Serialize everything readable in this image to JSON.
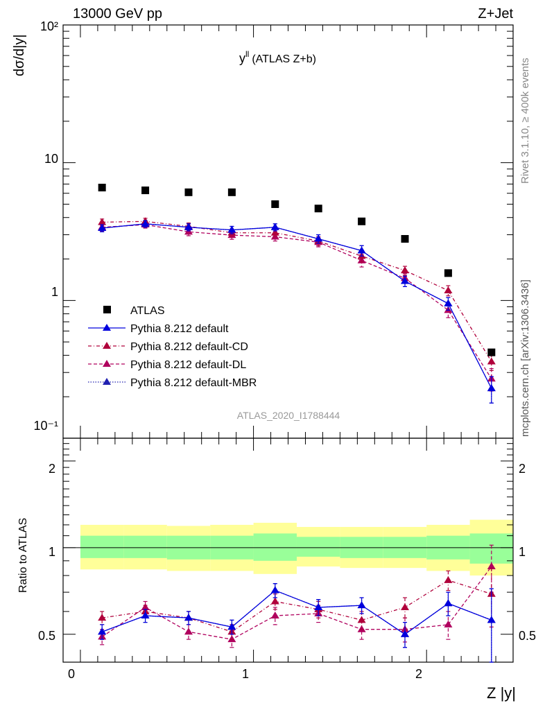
{
  "header": {
    "left": "13000 GeV pp",
    "right": "Z+Jet"
  },
  "side_labels": {
    "rivet": "Rivet 3.1.10, ≥ 400k events",
    "mcplots": "mcplots.cern.ch [arXiv:1306.3436]"
  },
  "upper_panel": {
    "title": "y",
    "title_superscript": "ll",
    "title_suffix": "(ATLAS Z+b)",
    "ylabel": "dσ/d|y|",
    "analysis_id": "ATLAS_2020_I1788444",
    "ytick_labels": [
      "10⁻¹",
      "1",
      "10",
      "10²"
    ]
  },
  "lower_panel": {
    "ylabel": "Ratio to ATLAS",
    "ytick_labels": [
      "0.5",
      "1",
      "2"
    ]
  },
  "xlabel": "Z |y|",
  "xtick_labels": [
    "0",
    "1",
    "2"
  ],
  "colors": {
    "data": "#000000",
    "default": "#0000dd",
    "cd": "#b0003b",
    "dl": "#b0005e",
    "mbr": "#2020b0",
    "band_inner": "#99ff99",
    "band_outer": "#ffff99"
  },
  "chart_data": [
    {
      "type": "line",
      "panel": "main",
      "yscale": "log",
      "xlim": [
        -0.1,
        2.5
      ],
      "ylim": [
        0.1,
        100
      ],
      "xlabel": "Z |y|",
      "ylabel": "dσ/d|y|",
      "x": [
        0.125,
        0.375,
        0.625,
        0.875,
        1.125,
        1.375,
        1.625,
        1.875,
        2.125,
        2.375
      ],
      "series": [
        {
          "name": "ATLAS",
          "style": "data",
          "values": [
            6.6,
            6.3,
            6.1,
            6.1,
            5.0,
            4.65,
            3.75,
            2.8,
            1.58,
            0.42
          ]
        },
        {
          "name": "Pythia 8.212 default",
          "style": "default",
          "values": [
            3.35,
            3.6,
            3.4,
            3.25,
            3.4,
            2.8,
            2.3,
            1.38,
            0.95,
            0.23
          ],
          "err": [
            0.2,
            0.2,
            0.2,
            0.2,
            0.2,
            0.2,
            0.2,
            0.12,
            0.1,
            0.05
          ]
        },
        {
          "name": "Pythia 8.212 default-CD",
          "style": "cd",
          "values": [
            3.7,
            3.75,
            3.45,
            3.1,
            3.1,
            2.7,
            2.1,
            1.65,
            1.18,
            0.36
          ],
          "err": [
            0.2,
            0.2,
            0.2,
            0.2,
            0.2,
            0.2,
            0.2,
            0.12,
            0.1,
            0.05
          ]
        },
        {
          "name": "Pythia 8.212 default-DL",
          "style": "dl",
          "values": [
            3.4,
            3.55,
            3.15,
            2.98,
            2.9,
            2.65,
            1.95,
            1.45,
            0.85,
            0.27
          ],
          "err": [
            0.2,
            0.2,
            0.2,
            0.2,
            0.2,
            0.2,
            0.2,
            0.12,
            0.1,
            0.05
          ]
        },
        {
          "name": "Pythia 8.212 default-MBR",
          "style": "mbr",
          "values": [
            3.35,
            3.6,
            3.4,
            3.25,
            3.4,
            2.8,
            2.3,
            1.38,
            0.95,
            0.23
          ],
          "err": [
            0.2,
            0.2,
            0.2,
            0.2,
            0.2,
            0.2,
            0.2,
            0.12,
            0.1,
            0.05
          ]
        }
      ]
    },
    {
      "type": "line",
      "panel": "ratio",
      "yscale": "log",
      "xlim": [
        -0.1,
        2.5
      ],
      "ylim": [
        0.4,
        2.4
      ],
      "ylabel": "Ratio to ATLAS",
      "x": [
        0.125,
        0.375,
        0.625,
        0.875,
        1.125,
        1.375,
        1.625,
        1.875,
        2.125,
        2.375
      ],
      "band_outer": {
        "low": [
          0.84,
          0.84,
          0.83,
          0.83,
          0.81,
          0.86,
          0.85,
          0.85,
          0.83,
          0.8
        ],
        "high": [
          1.2,
          1.2,
          1.19,
          1.2,
          1.22,
          1.18,
          1.18,
          1.18,
          1.2,
          1.25
        ]
      },
      "band_inner": {
        "low": [
          0.92,
          0.92,
          0.91,
          0.91,
          0.9,
          0.93,
          0.92,
          0.92,
          0.91,
          0.88
        ],
        "high": [
          1.1,
          1.1,
          1.1,
          1.1,
          1.12,
          1.09,
          1.09,
          1.09,
          1.1,
          1.12
        ]
      },
      "series": [
        {
          "name": "Pythia 8.212 default",
          "style": "default",
          "values": [
            0.51,
            0.58,
            0.57,
            0.53,
            0.71,
            0.62,
            0.63,
            0.5,
            0.64,
            0.56
          ],
          "err": [
            0.03,
            0.03,
            0.03,
            0.03,
            0.04,
            0.04,
            0.04,
            0.05,
            0.06,
            0.16
          ]
        },
        {
          "name": "Pythia 8.212 default-CD",
          "style": "cd",
          "values": [
            0.57,
            0.6,
            0.57,
            0.51,
            0.65,
            0.61,
            0.56,
            0.62,
            0.77,
            0.69
          ],
          "err": [
            0.03,
            0.03,
            0.03,
            0.03,
            0.04,
            0.04,
            0.04,
            0.05,
            0.06,
            0.16
          ]
        },
        {
          "name": "Pythia 8.212 default-DL",
          "style": "dl",
          "values": [
            0.49,
            0.62,
            0.51,
            0.48,
            0.58,
            0.59,
            0.52,
            0.52,
            0.54,
            0.86
          ],
          "err": [
            0.03,
            0.03,
            0.03,
            0.03,
            0.04,
            0.04,
            0.04,
            0.05,
            0.06,
            0.16
          ]
        },
        {
          "name": "Pythia 8.212 default-MBR",
          "style": "mbr",
          "values": [
            0.51,
            0.58,
            0.57,
            0.53,
            0.71,
            0.62,
            0.63,
            0.5,
            0.64,
            0.56
          ],
          "err": [
            0.03,
            0.03,
            0.03,
            0.03,
            0.04,
            0.04,
            0.04,
            0.05,
            0.06,
            0.16
          ]
        }
      ]
    }
  ]
}
